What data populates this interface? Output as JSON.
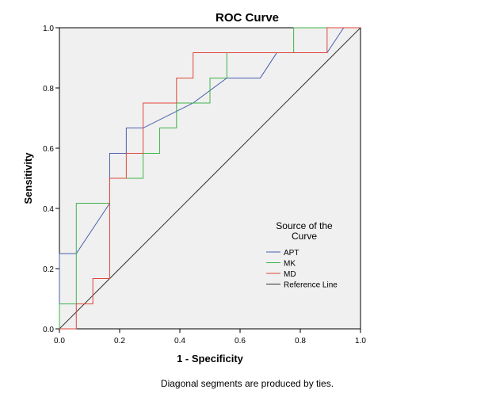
{
  "chart_data": {
    "type": "line",
    "title": "ROC Curve",
    "xlabel": "1 - Specificity",
    "ylabel": "Sensitivity",
    "xlim": [
      0,
      1
    ],
    "ylim": [
      0,
      1
    ],
    "xticks": [
      "0.0",
      "0.2",
      "0.4",
      "0.6",
      "0.8",
      "1.0"
    ],
    "yticks": [
      "0.0",
      "0.2",
      "0.4",
      "0.6",
      "0.8",
      "1.0"
    ],
    "legend": {
      "title_line1": "Source of the",
      "title_line2": "Curve",
      "placement": "right-middle"
    },
    "footnote": "Diagonal segments are produced by ties.",
    "series": [
      {
        "name": "APT",
        "color": "#4a5eb0",
        "points": [
          [
            0,
            0
          ],
          [
            0,
            0.25
          ],
          [
            0.056,
            0.25
          ],
          [
            0.167,
            0.417
          ],
          [
            0.167,
            0.583
          ],
          [
            0.222,
            0.583
          ],
          [
            0.222,
            0.667
          ],
          [
            0.278,
            0.667
          ],
          [
            0.444,
            0.75
          ],
          [
            0.556,
            0.833
          ],
          [
            0.667,
            0.833
          ],
          [
            0.722,
            0.917
          ],
          [
            0.889,
            0.917
          ],
          [
            0.944,
            1.0
          ],
          [
            1.0,
            1.0
          ]
        ]
      },
      {
        "name": "MK",
        "color": "#3fb34a",
        "points": [
          [
            0,
            0
          ],
          [
            0,
            0.083
          ],
          [
            0.056,
            0.083
          ],
          [
            0.056,
            0.417
          ],
          [
            0.167,
            0.417
          ],
          [
            0.167,
            0.5
          ],
          [
            0.278,
            0.5
          ],
          [
            0.278,
            0.583
          ],
          [
            0.333,
            0.583
          ],
          [
            0.333,
            0.667
          ],
          [
            0.389,
            0.667
          ],
          [
            0.389,
            0.75
          ],
          [
            0.5,
            0.75
          ],
          [
            0.5,
            0.833
          ],
          [
            0.556,
            0.833
          ],
          [
            0.556,
            0.917
          ],
          [
            0.778,
            0.917
          ],
          [
            0.778,
            1.0
          ],
          [
            1.0,
            1.0
          ]
        ]
      },
      {
        "name": "MD",
        "color": "#e0463c",
        "points": [
          [
            0,
            0
          ],
          [
            0.056,
            0
          ],
          [
            0.056,
            0.083
          ],
          [
            0.111,
            0.083
          ],
          [
            0.111,
            0.167
          ],
          [
            0.167,
            0.167
          ],
          [
            0.167,
            0.5
          ],
          [
            0.222,
            0.5
          ],
          [
            0.222,
            0.583
          ],
          [
            0.278,
            0.583
          ],
          [
            0.278,
            0.75
          ],
          [
            0.389,
            0.75
          ],
          [
            0.389,
            0.833
          ],
          [
            0.444,
            0.833
          ],
          [
            0.444,
            0.917
          ],
          [
            0.889,
            0.917
          ],
          [
            0.889,
            1.0
          ],
          [
            1.0,
            1.0
          ]
        ]
      },
      {
        "name": "Reference Line",
        "color": "#333333",
        "points": [
          [
            0,
            0
          ],
          [
            1,
            1
          ]
        ]
      }
    ]
  }
}
